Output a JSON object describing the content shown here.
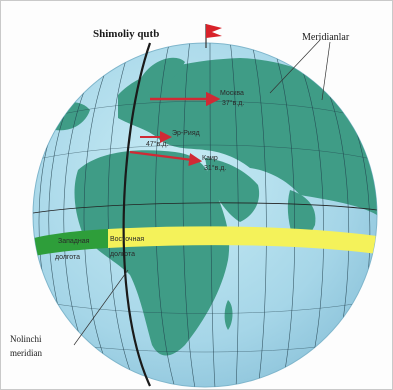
{
  "labels": {
    "north_pole": "Shimoliy qutb",
    "meridians": "Meridianlar",
    "prime_meridian": "Nolinchi meridian",
    "western_longitude": "Западная долгота",
    "eastern_longitude": "Восточная долгота"
  },
  "cities": [
    {
      "name": "Москва",
      "longitude": "37°в.д."
    },
    {
      "name": "Эр-Рияд",
      "longitude": "47°в.д."
    },
    {
      "name": "Каир",
      "longitude": "31°в.д."
    }
  ],
  "colors": {
    "ocean": "#a9d8e9",
    "land": "#3f9c86",
    "west_band": "#2e9e3a",
    "east_band": "#f4f25a",
    "flag": "#d8222a",
    "arrow": "#d02a35"
  }
}
